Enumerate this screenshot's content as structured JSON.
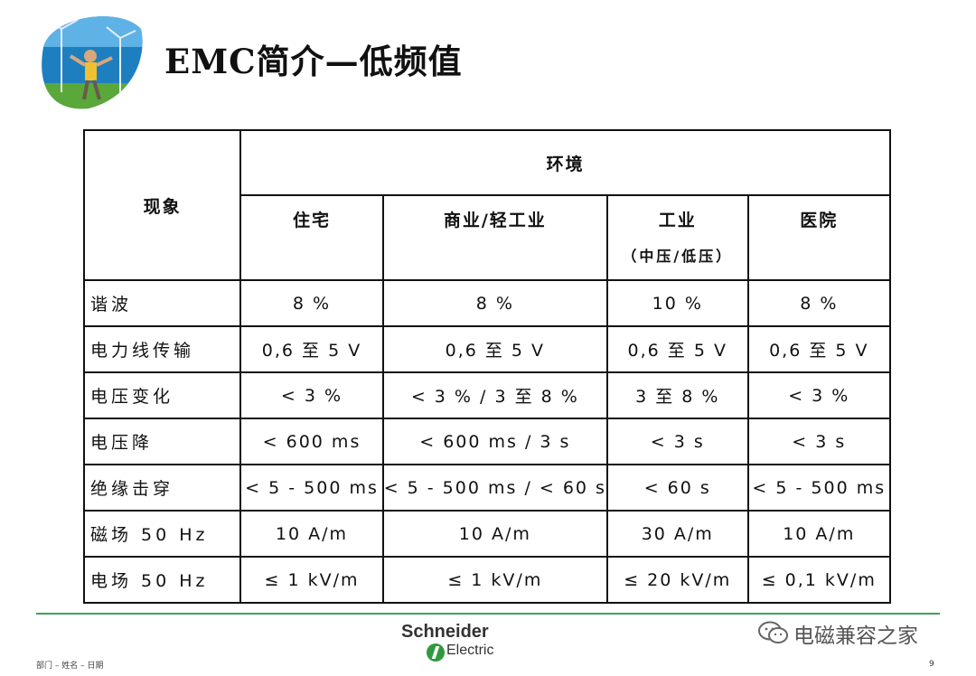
{
  "slide": {
    "title": "EMC简介—低频值",
    "logo_icon": "windmill-photo-badge-icon"
  },
  "table": {
    "header_phenomenon": "现象",
    "header_environment": "环境",
    "columns": [
      {
        "label": "住宅",
        "sub": ""
      },
      {
        "label": "商业/轻工业",
        "sub": ""
      },
      {
        "label": "工业",
        "sub": "（中压/低压）"
      },
      {
        "label": "医院",
        "sub": ""
      }
    ],
    "rows": [
      {
        "label": "谐波",
        "values": [
          "8 %",
          "8 %",
          "10 %",
          "8 %"
        ]
      },
      {
        "label": "电力线传输",
        "values": [
          "0,6 至 5 V",
          "0,6 至 5 V",
          "0,6 至 5 V",
          "0,6 至 5 V"
        ]
      },
      {
        "label": "电压变化",
        "values": [
          "< 3 %",
          "< 3 % / 3 至 8 %",
          "3 至 8 %",
          "< 3 %"
        ]
      },
      {
        "label": "电压降",
        "values": [
          "< 600 ms",
          "< 600 ms / 3 s",
          "< 3 s",
          "< 3 s"
        ]
      },
      {
        "label": "绝缘击穿",
        "values": [
          "< 5 - 500 ms",
          "< 5 - 500 ms / < 60 s",
          "< 60 s",
          "< 5 - 500 ms"
        ]
      },
      {
        "label": "磁场 50 Hz",
        "values": [
          "10 A/m",
          "10 A/m",
          "30 A/m",
          "10 A/m"
        ]
      },
      {
        "label": "电场 50 Hz",
        "values": [
          "≤ 1 kV/m",
          "≤ 1 kV/m",
          "≤ 20 kV/m",
          "≤ 0,1 kV/m"
        ]
      }
    ]
  },
  "footer": {
    "brand_top": "Schneider",
    "brand_bottom": "Electric",
    "watermark": "电磁兼容之家",
    "watermark_icon": "wechat-icon",
    "left_text": "部门 – 姓名 – 日期",
    "page_number": "9",
    "line_color": "#3f9f5a"
  }
}
